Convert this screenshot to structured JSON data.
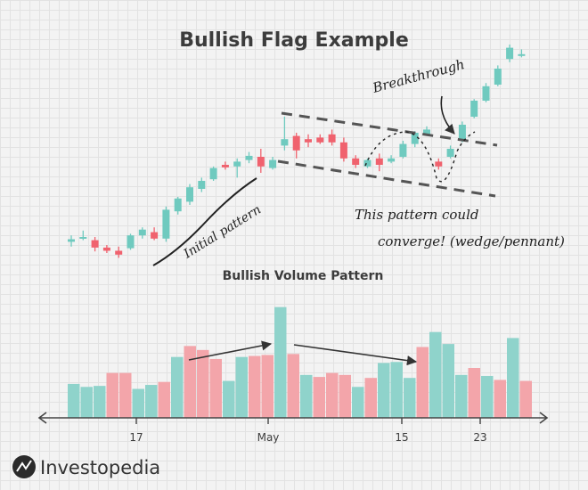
{
  "chart_data": [
    {
      "type": "candlestick",
      "title": "Bullish Flag Example",
      "colors": {
        "up": "#6fcabf",
        "down": "#f0626e"
      },
      "candles": [
        {
          "o": 1.0,
          "h": 3.0,
          "l": -0.5,
          "c": 1.8
        },
        {
          "o": 2.5,
          "h": 4.5,
          "l": 1.5,
          "c": 2.5
        },
        {
          "o": 1.5,
          "h": 2.5,
          "l": -2.0,
          "c": -0.8
        },
        {
          "o": -0.8,
          "h": 0.0,
          "l": -2.5,
          "c": -1.8
        },
        {
          "o": -1.8,
          "h": -0.5,
          "l": -4.0,
          "c": -3.0
        },
        {
          "o": -1.0,
          "h": 3.5,
          "l": -1.5,
          "c": 3.0
        },
        {
          "o": 3.0,
          "h": 5.5,
          "l": 2.0,
          "c": 4.8
        },
        {
          "o": 4.0,
          "h": 5.5,
          "l": 1.5,
          "c": 2.0
        },
        {
          "o": 2.0,
          "h": 12.0,
          "l": 1.0,
          "c": 11.0
        },
        {
          "o": 10.5,
          "h": 15.0,
          "l": 9.5,
          "c": 14.5
        },
        {
          "o": 13.5,
          "h": 19.0,
          "l": 12.5,
          "c": 18.0
        },
        {
          "o": 17.5,
          "h": 21.0,
          "l": 16.5,
          "c": 20.0
        },
        {
          "o": 20.5,
          "h": 24.5,
          "l": 20.0,
          "c": 24.0
        },
        {
          "o": 25.0,
          "h": 26.0,
          "l": 23.5,
          "c": 24.2
        },
        {
          "o": 24.5,
          "h": 27.0,
          "l": 21.0,
          "c": 26.0
        },
        {
          "o": 26.5,
          "h": 29.0,
          "l": 25.5,
          "c": 27.8
        },
        {
          "o": 27.5,
          "h": 30.0,
          "l": 22.5,
          "c": 24.5
        },
        {
          "o": 24.0,
          "h": 27.5,
          "l": 23.5,
          "c": 26.5
        },
        {
          "o": 31.0,
          "h": 40.0,
          "l": 29.5,
          "c": 33.0
        },
        {
          "o": 34.0,
          "h": 35.0,
          "l": 27.0,
          "c": 29.5
        },
        {
          "o": 33.0,
          "h": 34.5,
          "l": 30.5,
          "c": 32.0
        },
        {
          "o": 33.5,
          "h": 34.5,
          "l": 31.5,
          "c": 32.0
        },
        {
          "o": 34.5,
          "h": 36.0,
          "l": 31.0,
          "c": 32.0
        },
        {
          "o": 32.0,
          "h": 33.5,
          "l": 26.0,
          "c": 27.0
        },
        {
          "o": 27.0,
          "h": 28.0,
          "l": 24.0,
          "c": 25.0
        },
        {
          "o": 24.5,
          "h": 27.0,
          "l": 24.0,
          "c": 26.5
        },
        {
          "o": 27.0,
          "h": 28.5,
          "l": 23.0,
          "c": 25.0
        },
        {
          "o": 26.0,
          "h": 28.0,
          "l": 25.5,
          "c": 27.0
        },
        {
          "o": 27.5,
          "h": 32.5,
          "l": 27.0,
          "c": 31.5
        },
        {
          "o": 31.5,
          "h": 35.5,
          "l": 30.5,
          "c": 35.0
        },
        {
          "o": 34.5,
          "h": 37.0,
          "l": 34.0,
          "c": 36.0
        },
        {
          "o": 26.0,
          "h": 27.0,
          "l": 23.5,
          "c": 24.5
        },
        {
          "o": 27.5,
          "h": 31.0,
          "l": 27.0,
          "c": 30.0
        },
        {
          "o": 32.5,
          "h": 38.5,
          "l": 32.0,
          "c": 37.5
        },
        {
          "o": 40.0,
          "h": 45.5,
          "l": 39.5,
          "c": 45.0
        },
        {
          "o": 45.0,
          "h": 50.5,
          "l": 44.5,
          "c": 49.5
        },
        {
          "o": 50.0,
          "h": 56.0,
          "l": 49.5,
          "c": 55.0
        },
        {
          "o": 58.0,
          "h": 62.5,
          "l": 57.0,
          "c": 61.5
        },
        {
          "o": 59.5,
          "h": 61.0,
          "l": 58.5,
          "c": 59.5
        }
      ],
      "annotations": [
        "Initial pattern",
        "Breakthrough",
        "This pattern could",
        "converge! (wedge/pennant)"
      ]
    },
    {
      "type": "bar",
      "title": "Bullish Volume Pattern",
      "x_tick_labels": [
        "17",
        "May",
        "15",
        "23"
      ],
      "colors": {
        "up": "#8fd3cb",
        "down": "#f3a5aa"
      },
      "values": [
        34,
        31,
        32,
        45,
        45,
        29,
        33,
        36,
        61,
        72,
        68,
        59,
        37,
        61,
        62,
        63,
        111,
        64,
        43,
        41,
        45,
        43,
        31,
        40,
        55,
        56,
        40,
        71,
        86,
        74,
        43,
        50,
        42,
        38,
        80,
        37
      ],
      "bar_colors": [
        "up",
        "up",
        "up",
        "down",
        "down",
        "up",
        "up",
        "down",
        "up",
        "down",
        "down",
        "down",
        "up",
        "up",
        "down",
        "down",
        "up",
        "down",
        "up",
        "down",
        "down",
        "down",
        "up",
        "down",
        "up",
        "up",
        "up",
        "down",
        "up",
        "up",
        "up",
        "down",
        "up",
        "down",
        "up",
        "down"
      ]
    }
  ],
  "logo": {
    "text": "Investopedia"
  }
}
